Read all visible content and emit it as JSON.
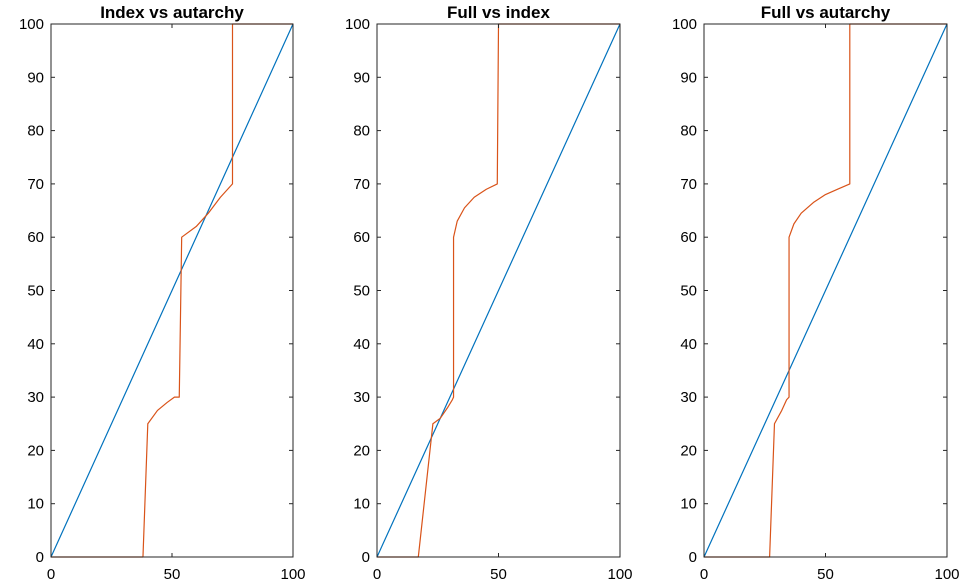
{
  "chart_data": [
    {
      "type": "line",
      "title": "Index vs autarchy",
      "xlim": [
        0,
        100
      ],
      "ylim": [
        0,
        100
      ],
      "xticks": [
        0,
        50,
        100
      ],
      "yticks": [
        0,
        10,
        20,
        30,
        40,
        50,
        60,
        70,
        80,
        90,
        100
      ],
      "grid": false,
      "series": [
        {
          "color": "#0072BD",
          "x": [
            0,
            100
          ],
          "y": [
            0,
            100
          ]
        },
        {
          "color": "#D95319",
          "x": [
            0,
            38,
            40,
            44,
            48,
            51,
            53,
            54,
            60,
            65,
            70,
            73,
            75,
            75,
            75,
            100
          ],
          "y": [
            0,
            0,
            25,
            27.5,
            29,
            30,
            30,
            60,
            62,
            64.5,
            67.5,
            69,
            70,
            100,
            100,
            100
          ]
        }
      ]
    },
    {
      "type": "line",
      "title": "Full vs index",
      "xlim": [
        0,
        100
      ],
      "ylim": [
        0,
        100
      ],
      "xticks": [
        0,
        50,
        100
      ],
      "yticks": [
        0,
        10,
        20,
        30,
        40,
        50,
        60,
        70,
        80,
        90,
        100
      ],
      "grid": false,
      "series": [
        {
          "color": "#0072BD",
          "x": [
            0,
            100
          ],
          "y": [
            0,
            100
          ]
        },
        {
          "color": "#D95319",
          "x": [
            0,
            17,
            23,
            26,
            29,
            31,
            31.5,
            31.5,
            33,
            36,
            40,
            45,
            49.5,
            50,
            50,
            100
          ],
          "y": [
            0,
            0,
            25,
            26,
            28,
            29.5,
            30,
            60,
            63,
            65.5,
            67.5,
            69,
            70,
            100,
            100,
            100
          ]
        }
      ]
    },
    {
      "type": "line",
      "title": "Full vs autarchy",
      "xlim": [
        0,
        100
      ],
      "ylim": [
        0,
        100
      ],
      "xticks": [
        0,
        50,
        100
      ],
      "yticks": [
        0,
        10,
        20,
        30,
        40,
        50,
        60,
        70,
        80,
        90,
        100
      ],
      "grid": false,
      "series": [
        {
          "color": "#0072BD",
          "x": [
            0,
            100
          ],
          "y": [
            0,
            100
          ]
        },
        {
          "color": "#D95319",
          "x": [
            0,
            27,
            29,
            32,
            34,
            35,
            35,
            37,
            40,
            45,
            50,
            55,
            60,
            60,
            100
          ],
          "y": [
            0,
            0,
            25,
            27.5,
            29.5,
            30,
            60,
            62.5,
            64.5,
            66.5,
            68,
            69,
            70,
            100,
            100
          ]
        }
      ]
    }
  ]
}
